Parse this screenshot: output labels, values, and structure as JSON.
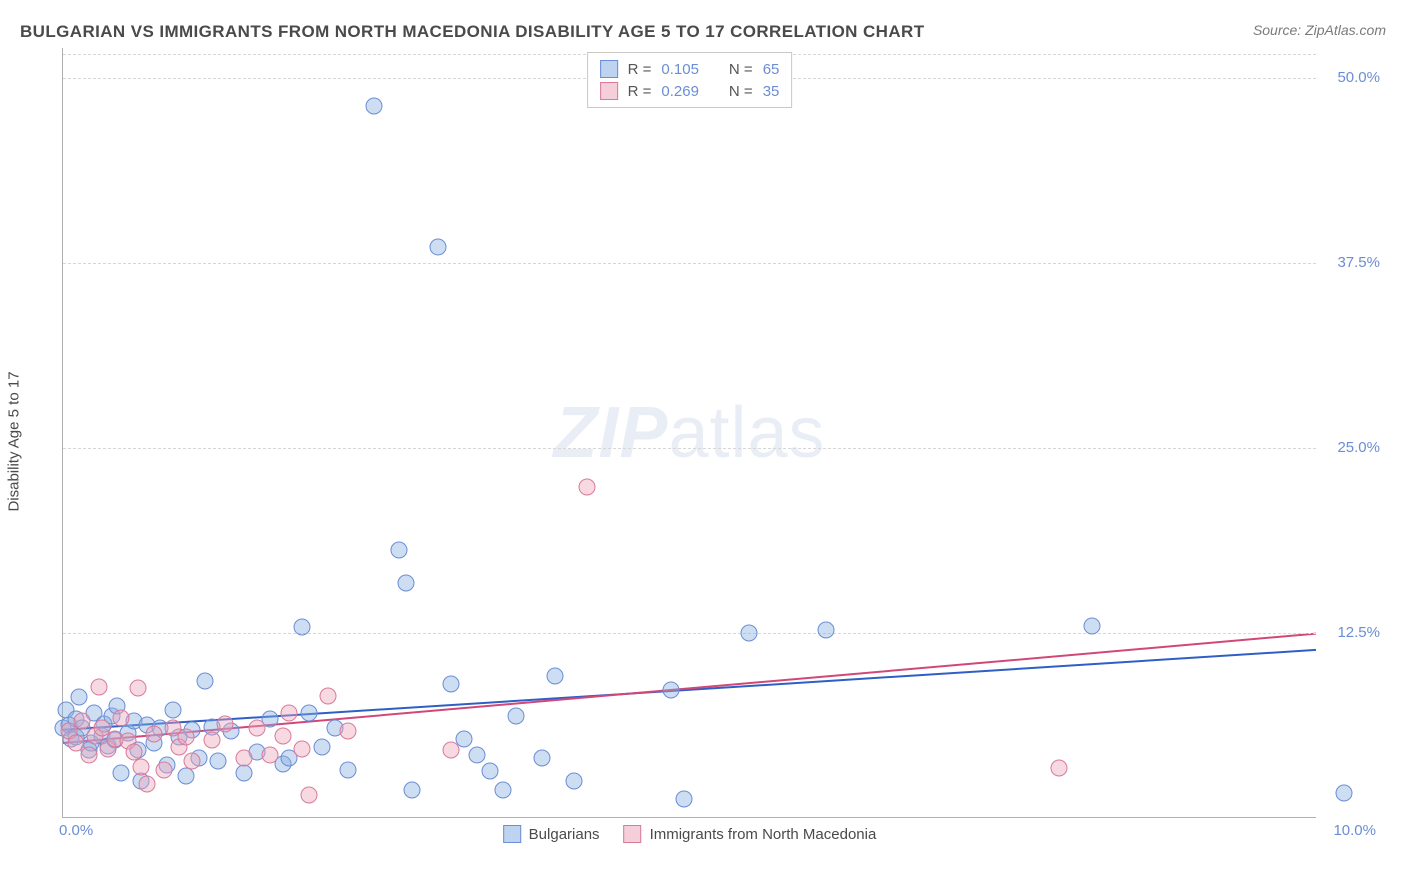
{
  "header": {
    "title": "BULGARIAN VS IMMIGRANTS FROM NORTH MACEDONIA DISABILITY AGE 5 TO 17 CORRELATION CHART",
    "source": "Source: ZipAtlas.com"
  },
  "chart": {
    "type": "scatter",
    "y_label": "Disability Age 5 to 17",
    "watermark": "ZIPatlas",
    "background_color": "#ffffff",
    "grid_color": "#d6d6d6",
    "axis_color": "#b0b0b0",
    "tick_color": "#6b8dd6",
    "title_color": "#4a4a4a",
    "title_fontsize": 17,
    "tick_fontsize": 15,
    "label_fontsize": 15,
    "marker_size": 17,
    "xlim": [
      0,
      10
    ],
    "ylim": [
      0,
      52
    ],
    "y_ticks": [
      {
        "value": 12.5,
        "label": "12.5%"
      },
      {
        "value": 25.0,
        "label": "25.0%"
      },
      {
        "value": 37.5,
        "label": "37.5%"
      },
      {
        "value": 50.0,
        "label": "50.0%"
      }
    ],
    "x_ticks": [
      {
        "value": 0,
        "label": "0.0%"
      },
      {
        "value": 10,
        "label": "10.0%"
      }
    ],
    "series": [
      {
        "name": "Bulgarians",
        "legend_label": "Bulgarians",
        "color_fill": "rgba(135,175,225,0.42)",
        "color_stroke": "#6b8dd6",
        "trend_color": "#2f5fc4",
        "stats": {
          "r": "0.105",
          "n": "65"
        },
        "trend": {
          "y_at_x0": 5.9,
          "y_at_xmax": 11.3
        },
        "points": [
          [
            0.0,
            6.0
          ],
          [
            0.02,
            7.2
          ],
          [
            0.05,
            6.2
          ],
          [
            0.06,
            5.3
          ],
          [
            0.1,
            5.4
          ],
          [
            0.1,
            6.6
          ],
          [
            0.12,
            8.1
          ],
          [
            0.15,
            6.0
          ],
          [
            0.2,
            4.5
          ],
          [
            0.22,
            5.0
          ],
          [
            0.24,
            7.0
          ],
          [
            0.3,
            5.5
          ],
          [
            0.32,
            6.3
          ],
          [
            0.35,
            4.8
          ],
          [
            0.38,
            6.8
          ],
          [
            0.4,
            5.2
          ],
          [
            0.42,
            7.5
          ],
          [
            0.45,
            3.0
          ],
          [
            0.5,
            5.7
          ],
          [
            0.55,
            6.5
          ],
          [
            0.58,
            4.5
          ],
          [
            0.6,
            2.4
          ],
          [
            0.65,
            6.2
          ],
          [
            0.7,
            5.0
          ],
          [
            0.75,
            6.0
          ],
          [
            0.8,
            3.5
          ],
          [
            0.85,
            7.2
          ],
          [
            0.9,
            5.4
          ],
          [
            0.95,
            2.8
          ],
          [
            1.0,
            5.9
          ],
          [
            1.05,
            4.0
          ],
          [
            1.1,
            9.2
          ],
          [
            1.15,
            6.1
          ],
          [
            1.2,
            3.8
          ],
          [
            1.3,
            5.8
          ],
          [
            1.4,
            3.0
          ],
          [
            1.5,
            4.4
          ],
          [
            1.6,
            6.6
          ],
          [
            1.7,
            3.6
          ],
          [
            1.75,
            4.0
          ],
          [
            1.85,
            12.8
          ],
          [
            1.9,
            7.0
          ],
          [
            2.0,
            4.7
          ],
          [
            2.1,
            6.0
          ],
          [
            2.2,
            3.2
          ],
          [
            2.4,
            48.0
          ],
          [
            2.6,
            18.0
          ],
          [
            2.65,
            15.8
          ],
          [
            2.7,
            1.8
          ],
          [
            2.9,
            38.5
          ],
          [
            3.0,
            9.0
          ],
          [
            3.1,
            5.3
          ],
          [
            3.2,
            4.2
          ],
          [
            3.3,
            3.1
          ],
          [
            3.4,
            1.8
          ],
          [
            3.5,
            6.8
          ],
          [
            3.7,
            4.0
          ],
          [
            3.8,
            9.5
          ],
          [
            3.95,
            2.4
          ],
          [
            4.7,
            8.6
          ],
          [
            4.8,
            1.2
          ],
          [
            5.3,
            12.4
          ],
          [
            5.9,
            12.6
          ],
          [
            7.95,
            12.9
          ],
          [
            9.9,
            1.6
          ]
        ]
      },
      {
        "name": "Immigrants from North Macedonia",
        "legend_label": "Immigrants from North Macedonia",
        "color_fill": "rgba(235,165,185,0.42)",
        "color_stroke": "#d97a9b",
        "trend_color": "#d14878",
        "stats": {
          "r": "0.269",
          "n": "35"
        },
        "trend": {
          "y_at_x0": 5.0,
          "y_at_xmax": 12.4
        },
        "points": [
          [
            0.05,
            5.8
          ],
          [
            0.1,
            5.0
          ],
          [
            0.15,
            6.5
          ],
          [
            0.2,
            4.2
          ],
          [
            0.25,
            5.5
          ],
          [
            0.28,
            8.8
          ],
          [
            0.3,
            6.0
          ],
          [
            0.35,
            4.6
          ],
          [
            0.4,
            5.3
          ],
          [
            0.45,
            6.7
          ],
          [
            0.5,
            5.1
          ],
          [
            0.55,
            4.4
          ],
          [
            0.58,
            8.7
          ],
          [
            0.6,
            3.4
          ],
          [
            0.65,
            2.2
          ],
          [
            0.7,
            5.6
          ],
          [
            0.78,
            3.2
          ],
          [
            0.85,
            6.0
          ],
          [
            0.9,
            4.7
          ],
          [
            0.95,
            5.4
          ],
          [
            1.0,
            3.8
          ],
          [
            1.15,
            5.2
          ],
          [
            1.25,
            6.3
          ],
          [
            1.4,
            4.0
          ],
          [
            1.5,
            6.0
          ],
          [
            1.6,
            4.2
          ],
          [
            1.7,
            5.5
          ],
          [
            1.75,
            7.0
          ],
          [
            1.85,
            4.6
          ],
          [
            1.9,
            1.5
          ],
          [
            2.05,
            8.2
          ],
          [
            2.2,
            5.8
          ],
          [
            3.0,
            4.5
          ],
          [
            4.05,
            22.3
          ],
          [
            7.7,
            3.3
          ]
        ]
      }
    ],
    "stat_legend_labels": {
      "r": "R =",
      "n": "N ="
    }
  }
}
